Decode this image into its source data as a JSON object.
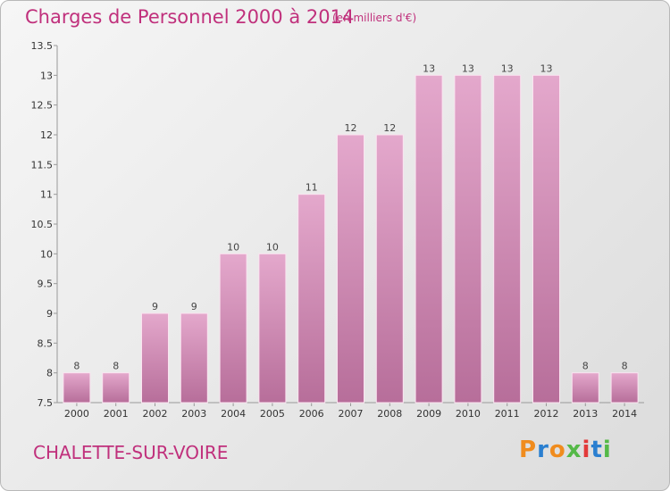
{
  "header": {
    "title": "Charges de Personnel 2000 à 2014",
    "unit": "(en milliers d'€)"
  },
  "footer": {
    "commune": "CHALETTE-SUR-VOIRE",
    "logo": "Proxiti"
  },
  "colors": {
    "title": "#c0307c",
    "bar_top": "#e4a8cc",
    "bar_bottom": "#b76e9a",
    "logo_letters": [
      "#f08c1e",
      "#2a7fd0",
      "#f08c1e",
      "#55b948",
      "#e23a3a",
      "#2a7fd0",
      "#55b948"
    ]
  },
  "chart_data": {
    "type": "bar",
    "title": "Charges de Personnel 2000 à 2014",
    "subtitle": "(en milliers d'€)",
    "categories": [
      "2000",
      "2001",
      "2002",
      "2003",
      "2004",
      "2005",
      "2006",
      "2007",
      "2008",
      "2009",
      "2010",
      "2011",
      "2012",
      "2013",
      "2014"
    ],
    "values": [
      8,
      8,
      9,
      9,
      10,
      10,
      11,
      12,
      12,
      13,
      13,
      13,
      13,
      8,
      8
    ],
    "ylim": [
      7.5,
      13.5
    ],
    "yticks": [
      "7.5",
      "8",
      "8.5",
      "9",
      "9.5",
      "10",
      "10.5",
      "11",
      "11.5",
      "12",
      "12.5",
      "13",
      "13.5"
    ],
    "grid": false,
    "legend": "none"
  }
}
